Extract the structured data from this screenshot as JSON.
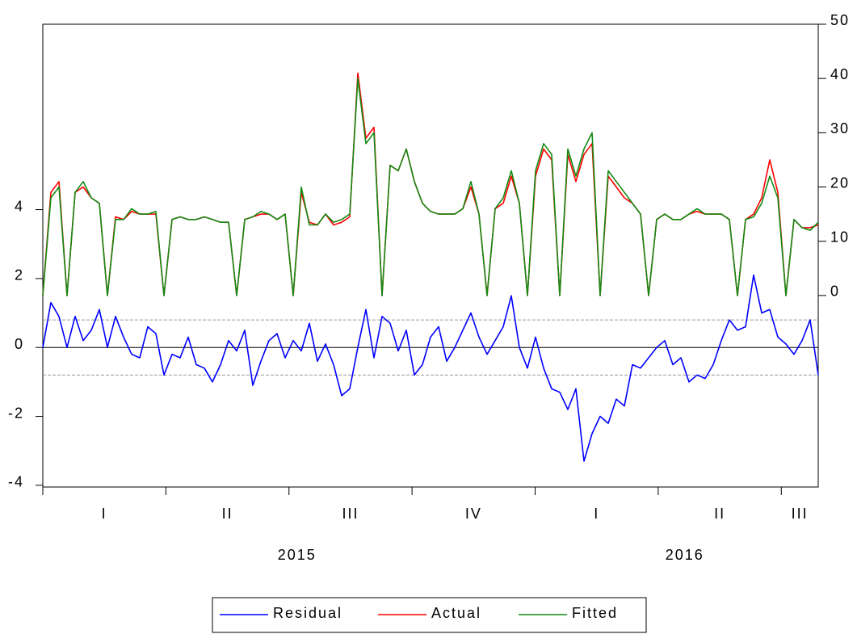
{
  "chart_data": {
    "type": "line",
    "xlim": [
      0,
      6.3
    ],
    "xticks": [
      0,
      1,
      2,
      3,
      4,
      5,
      6
    ],
    "quarters": [
      "I",
      "II",
      "III",
      "IV",
      "I",
      "II",
      "III"
    ],
    "years": [
      "2015",
      "2016"
    ],
    "ylim": [
      -4.05,
      9.38
    ],
    "yticks": [
      -4,
      -2,
      0,
      2,
      4
    ],
    "y2lim": [
      -35.3,
      50
    ],
    "y2ticks": [
      0,
      10,
      20,
      30,
      40,
      50
    ],
    "zero_line": 0,
    "band": [
      -0.8,
      0.8
    ],
    "series": [
      {
        "name": "Residual",
        "color": "#0000ff",
        "axis": "y",
        "values": [
          0,
          1.3,
          0.9,
          0,
          0.9,
          0.2,
          0.5,
          1.1,
          0,
          0.9,
          0.3,
          -0.2,
          -0.3,
          0.6,
          0.4,
          -0.8,
          -0.2,
          -0.3,
          0.3,
          -0.5,
          -0.6,
          -1,
          -0.5,
          0.2,
          -0.1,
          0.5,
          -1.1,
          -0.4,
          0.2,
          0.4,
          -0.3,
          0.2,
          -0.1,
          0.7,
          -0.4,
          0.1,
          -0.5,
          -1.4,
          -1.2,
          0,
          1.1,
          -0.3,
          0.9,
          0.7,
          -0.1,
          0.5,
          -0.8,
          -0.5,
          0.3,
          0.6,
          -0.4,
          0,
          0.5,
          1,
          0.3,
          -0.2,
          0.2,
          0.6,
          1.5,
          0,
          -0.6,
          0.3,
          -0.6,
          -1.2,
          -1.3,
          -1.8,
          -1.2,
          -3.3,
          -2.5,
          -2,
          -2.2,
          -1.5,
          -1.7,
          -0.5,
          -0.6,
          -0.3,
          0,
          0.2,
          -0.5,
          -0.3,
          -1,
          -0.8,
          -0.9,
          -0.5,
          0.2,
          0.8,
          0.5,
          0.6,
          2.1,
          1,
          1.1,
          0.3,
          0.1,
          -0.2,
          0.2,
          0.8,
          -0.8
        ]
      },
      {
        "name": "Actual",
        "color": "#ff0000",
        "axis": "y2",
        "values": [
          0,
          19,
          21,
          0,
          19,
          20,
          18,
          17,
          0,
          14.5,
          14,
          15.5,
          15,
          15,
          15,
          0,
          14,
          14.5,
          14,
          14,
          14.5,
          14,
          13.5,
          13.5,
          0,
          14,
          14.5,
          15,
          15,
          14,
          15,
          0,
          19,
          13.5,
          13,
          15,
          13,
          13.5,
          14.5,
          41,
          29,
          31,
          0,
          24,
          23,
          27,
          21,
          17,
          15.5,
          15,
          15,
          15,
          16,
          20,
          15,
          0,
          16,
          17,
          22,
          17,
          0,
          22,
          27,
          25,
          0,
          26,
          21,
          26,
          28,
          0,
          22,
          20,
          18,
          17,
          15,
          0,
          14,
          15,
          14,
          14,
          15,
          15.5,
          15,
          15,
          15,
          14,
          0,
          14,
          15,
          18,
          25,
          19,
          0,
          14,
          12.5,
          12.5,
          13
        ]
      },
      {
        "name": "Fitted",
        "color": "#138a13",
        "axis": "y2",
        "values": [
          0,
          18,
          20,
          0,
          19,
          21,
          18,
          17,
          0,
          14,
          14,
          16,
          15,
          15,
          15.5,
          0,
          14,
          14.5,
          14,
          14,
          14.5,
          14,
          13.5,
          13.5,
          0,
          14,
          14.5,
          15.5,
          15,
          14,
          15,
          0,
          20,
          13,
          13,
          15,
          13.5,
          14,
          15,
          40,
          28,
          30,
          0,
          24,
          23,
          27,
          21,
          17,
          15.5,
          15,
          15,
          15,
          16,
          21,
          15,
          0,
          16,
          18,
          23,
          17,
          0,
          23,
          28,
          26,
          0,
          27,
          22,
          27,
          30,
          0,
          23,
          21,
          19,
          17,
          15,
          0,
          14,
          15,
          14,
          14,
          15,
          16,
          15,
          15,
          15,
          14,
          0,
          14,
          14.5,
          17,
          22,
          18,
          0,
          14,
          12.5,
          12,
          13.5
        ]
      }
    ]
  }
}
